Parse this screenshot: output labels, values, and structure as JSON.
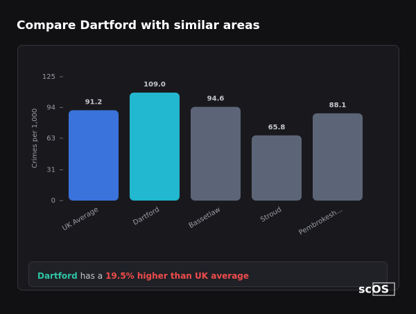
{
  "chart_data": {
    "type": "bar",
    "title": "Compare Dartford with similar areas",
    "y_label": "Crimes per 1,000",
    "categories": [
      "UK Average",
      "Dartford",
      "Bassetlaw",
      "Stroud",
      "Pembrokesh..."
    ],
    "values": [
      91.2,
      109.0,
      94.6,
      65.8,
      88.1
    ],
    "value_labels": [
      "91.2",
      "109.0",
      "94.6",
      "65.8",
      "88.1"
    ],
    "colors": [
      "#3a73dc",
      "#22b8cf",
      "#5c6577",
      "#5c6577",
      "#5c6577"
    ],
    "ylim": [
      0,
      125
    ],
    "yticks": [
      0,
      31,
      63,
      94,
      125
    ]
  },
  "summary": {
    "area": "Dartford",
    "text": "has a",
    "highlight": "19.5% higher than UK average"
  },
  "logo": "scOS"
}
